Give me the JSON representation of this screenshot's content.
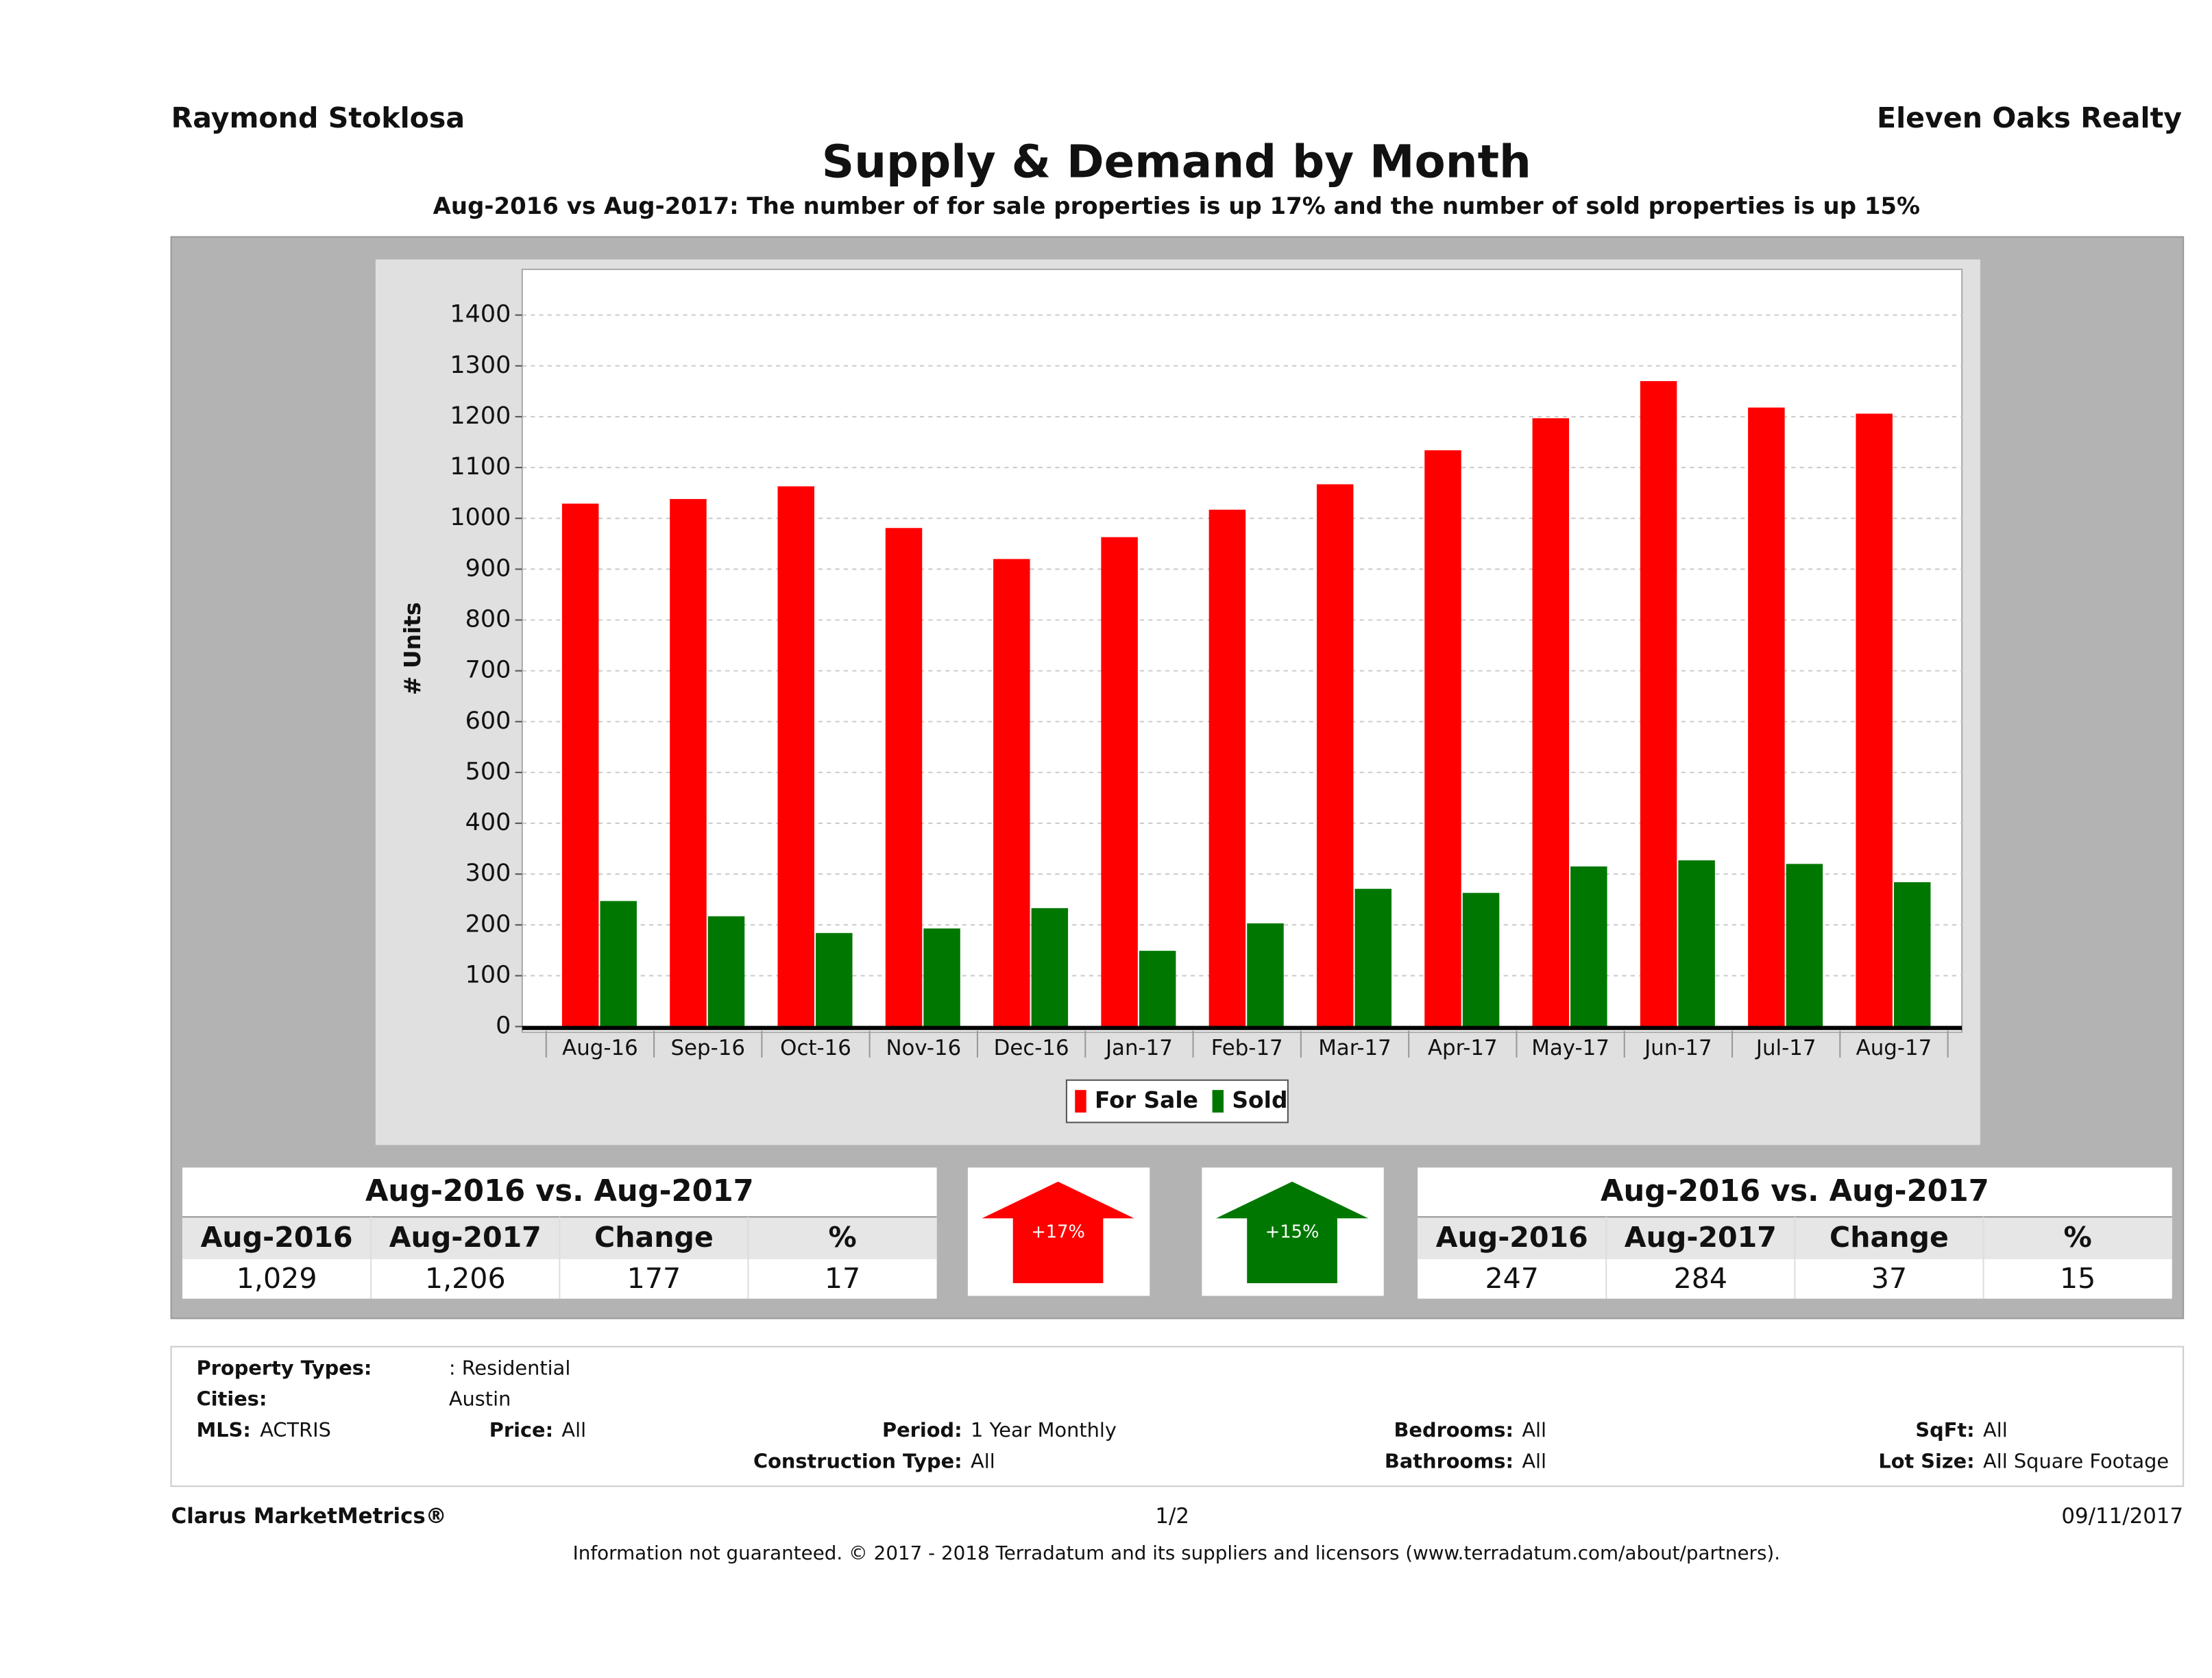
{
  "header": {
    "agent": "Raymond Stoklosa",
    "company": "Eleven Oaks Realty"
  },
  "chart_data": {
    "type": "bar",
    "title": "Supply & Demand by Month",
    "subtitle": "Aug-2016 vs Aug-2017: The number of for sale properties is up 17% and the number of sold properties is up 15%",
    "y_label": "# Units",
    "categories": [
      "Aug-16",
      "Sep-16",
      "Oct-16",
      "Nov-16",
      "Dec-16",
      "Jan-17",
      "Feb-17",
      "Mar-17",
      "Apr-17",
      "May-17",
      "Jun-17",
      "Jul-17",
      "Aug-17"
    ],
    "series": [
      {
        "name": "For Sale",
        "color": "#ff0000",
        "values": [
          1029,
          1038,
          1063,
          981,
          920,
          963,
          1017,
          1067,
          1134,
          1197,
          1270,
          1218,
          1206
        ]
      },
      {
        "name": "Sold",
        "color": "#007700",
        "values": [
          247,
          217,
          184,
          193,
          233,
          149,
          203,
          271,
          263,
          315,
          327,
          320,
          284
        ]
      }
    ],
    "ylim": [
      0,
      1490
    ],
    "yticks": [
      0,
      100,
      200,
      300,
      400,
      500,
      600,
      700,
      800,
      900,
      1000,
      1100,
      1200,
      1300,
      1400
    ],
    "grid": true,
    "legend": "bottom"
  },
  "tables": [
    {
      "title": "Aug-2016 vs. Aug-2017",
      "headers": [
        "Aug-2016",
        "Aug-2017",
        "Change",
        "%"
      ],
      "row": [
        "1,029",
        "1,206",
        "177",
        "17"
      ]
    },
    {
      "title": "Aug-2016 vs. Aug-2017",
      "headers": [
        "Aug-2016",
        "Aug-2017",
        "Change",
        "%"
      ],
      "row": [
        "247",
        "284",
        "37",
        "15"
      ]
    }
  ],
  "arrows": [
    {
      "label": "+17%",
      "color": "#ff0000"
    },
    {
      "label": "+15%",
      "color": "#007700"
    }
  ],
  "filters": [
    {
      "label": "Property Types:",
      "value": ": Residential"
    },
    {
      "label": "Cities:",
      "value": "Austin"
    },
    {
      "label": "MLS:",
      "value": "ACTRIS"
    },
    {
      "label": "Price:",
      "value": "All"
    },
    {
      "label": "Period:",
      "value": "1 Year Monthly"
    },
    {
      "label": "Bedrooms:",
      "value": "All"
    },
    {
      "label": "SqFt:",
      "value": "All"
    },
    {
      "label": "Construction Type:",
      "value": "All"
    },
    {
      "label": "Bathrooms:",
      "value": "All"
    },
    {
      "label": "Lot Size:",
      "value": "All Square Footage"
    }
  ],
  "footer": {
    "brand": "Clarus MarketMetrics®",
    "page": "1/2",
    "date": "09/11/2017",
    "disclaimer": "Information not guaranteed. © 2017 - 2018 Terradatum and its suppliers and licensors (www.terradatum.com/about/partners)."
  }
}
